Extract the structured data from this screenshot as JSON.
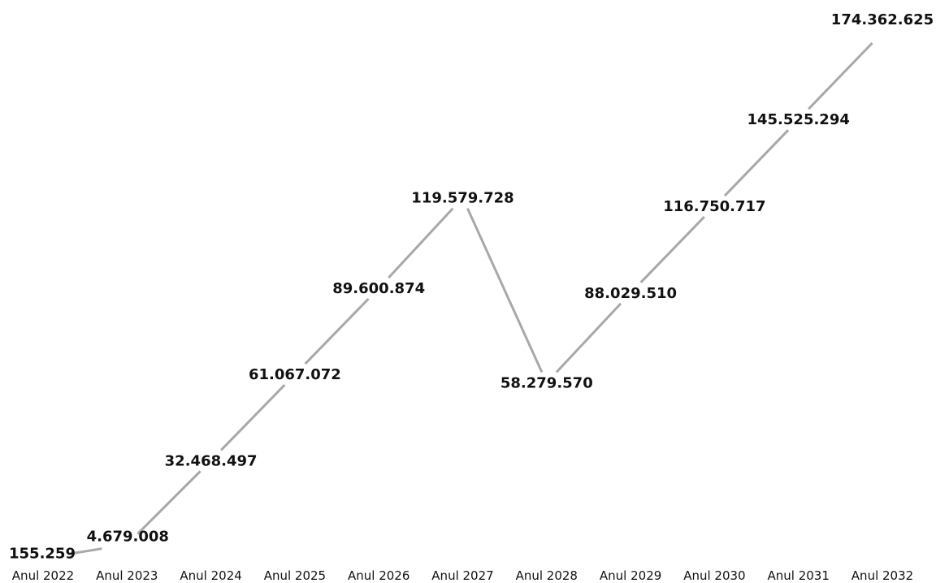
{
  "chart_data": {
    "type": "line",
    "title": "",
    "xlabel": "",
    "ylabel": "",
    "categories": [
      "Anul 2022",
      "Anul 2023",
      "Anul 2024",
      "Anul 2025",
      "Anul 2026",
      "Anul 2027",
      "Anul 2028",
      "Anul 2029",
      "Anul 2030",
      "Anul 2031",
      "Anul 2032"
    ],
    "values": [
      155259,
      4679008,
      32468497,
      61067072,
      89600874,
      119579728,
      58279570,
      88029510,
      116750717,
      145525294,
      174362625
    ],
    "value_labels": [
      "155.259",
      "4.679.008",
      "32.468.497",
      "61.067.072",
      "89.600.874",
      "119.579.728",
      "58.279.570",
      "88.029.510",
      "116.750.717",
      "145.525.294",
      "174.362.625"
    ],
    "ylim": [
      0,
      174362625
    ],
    "grid": false,
    "legend": "none",
    "colors": {
      "line": "#a8a8a8",
      "text": "#111111",
      "background": "#ffffff"
    }
  }
}
